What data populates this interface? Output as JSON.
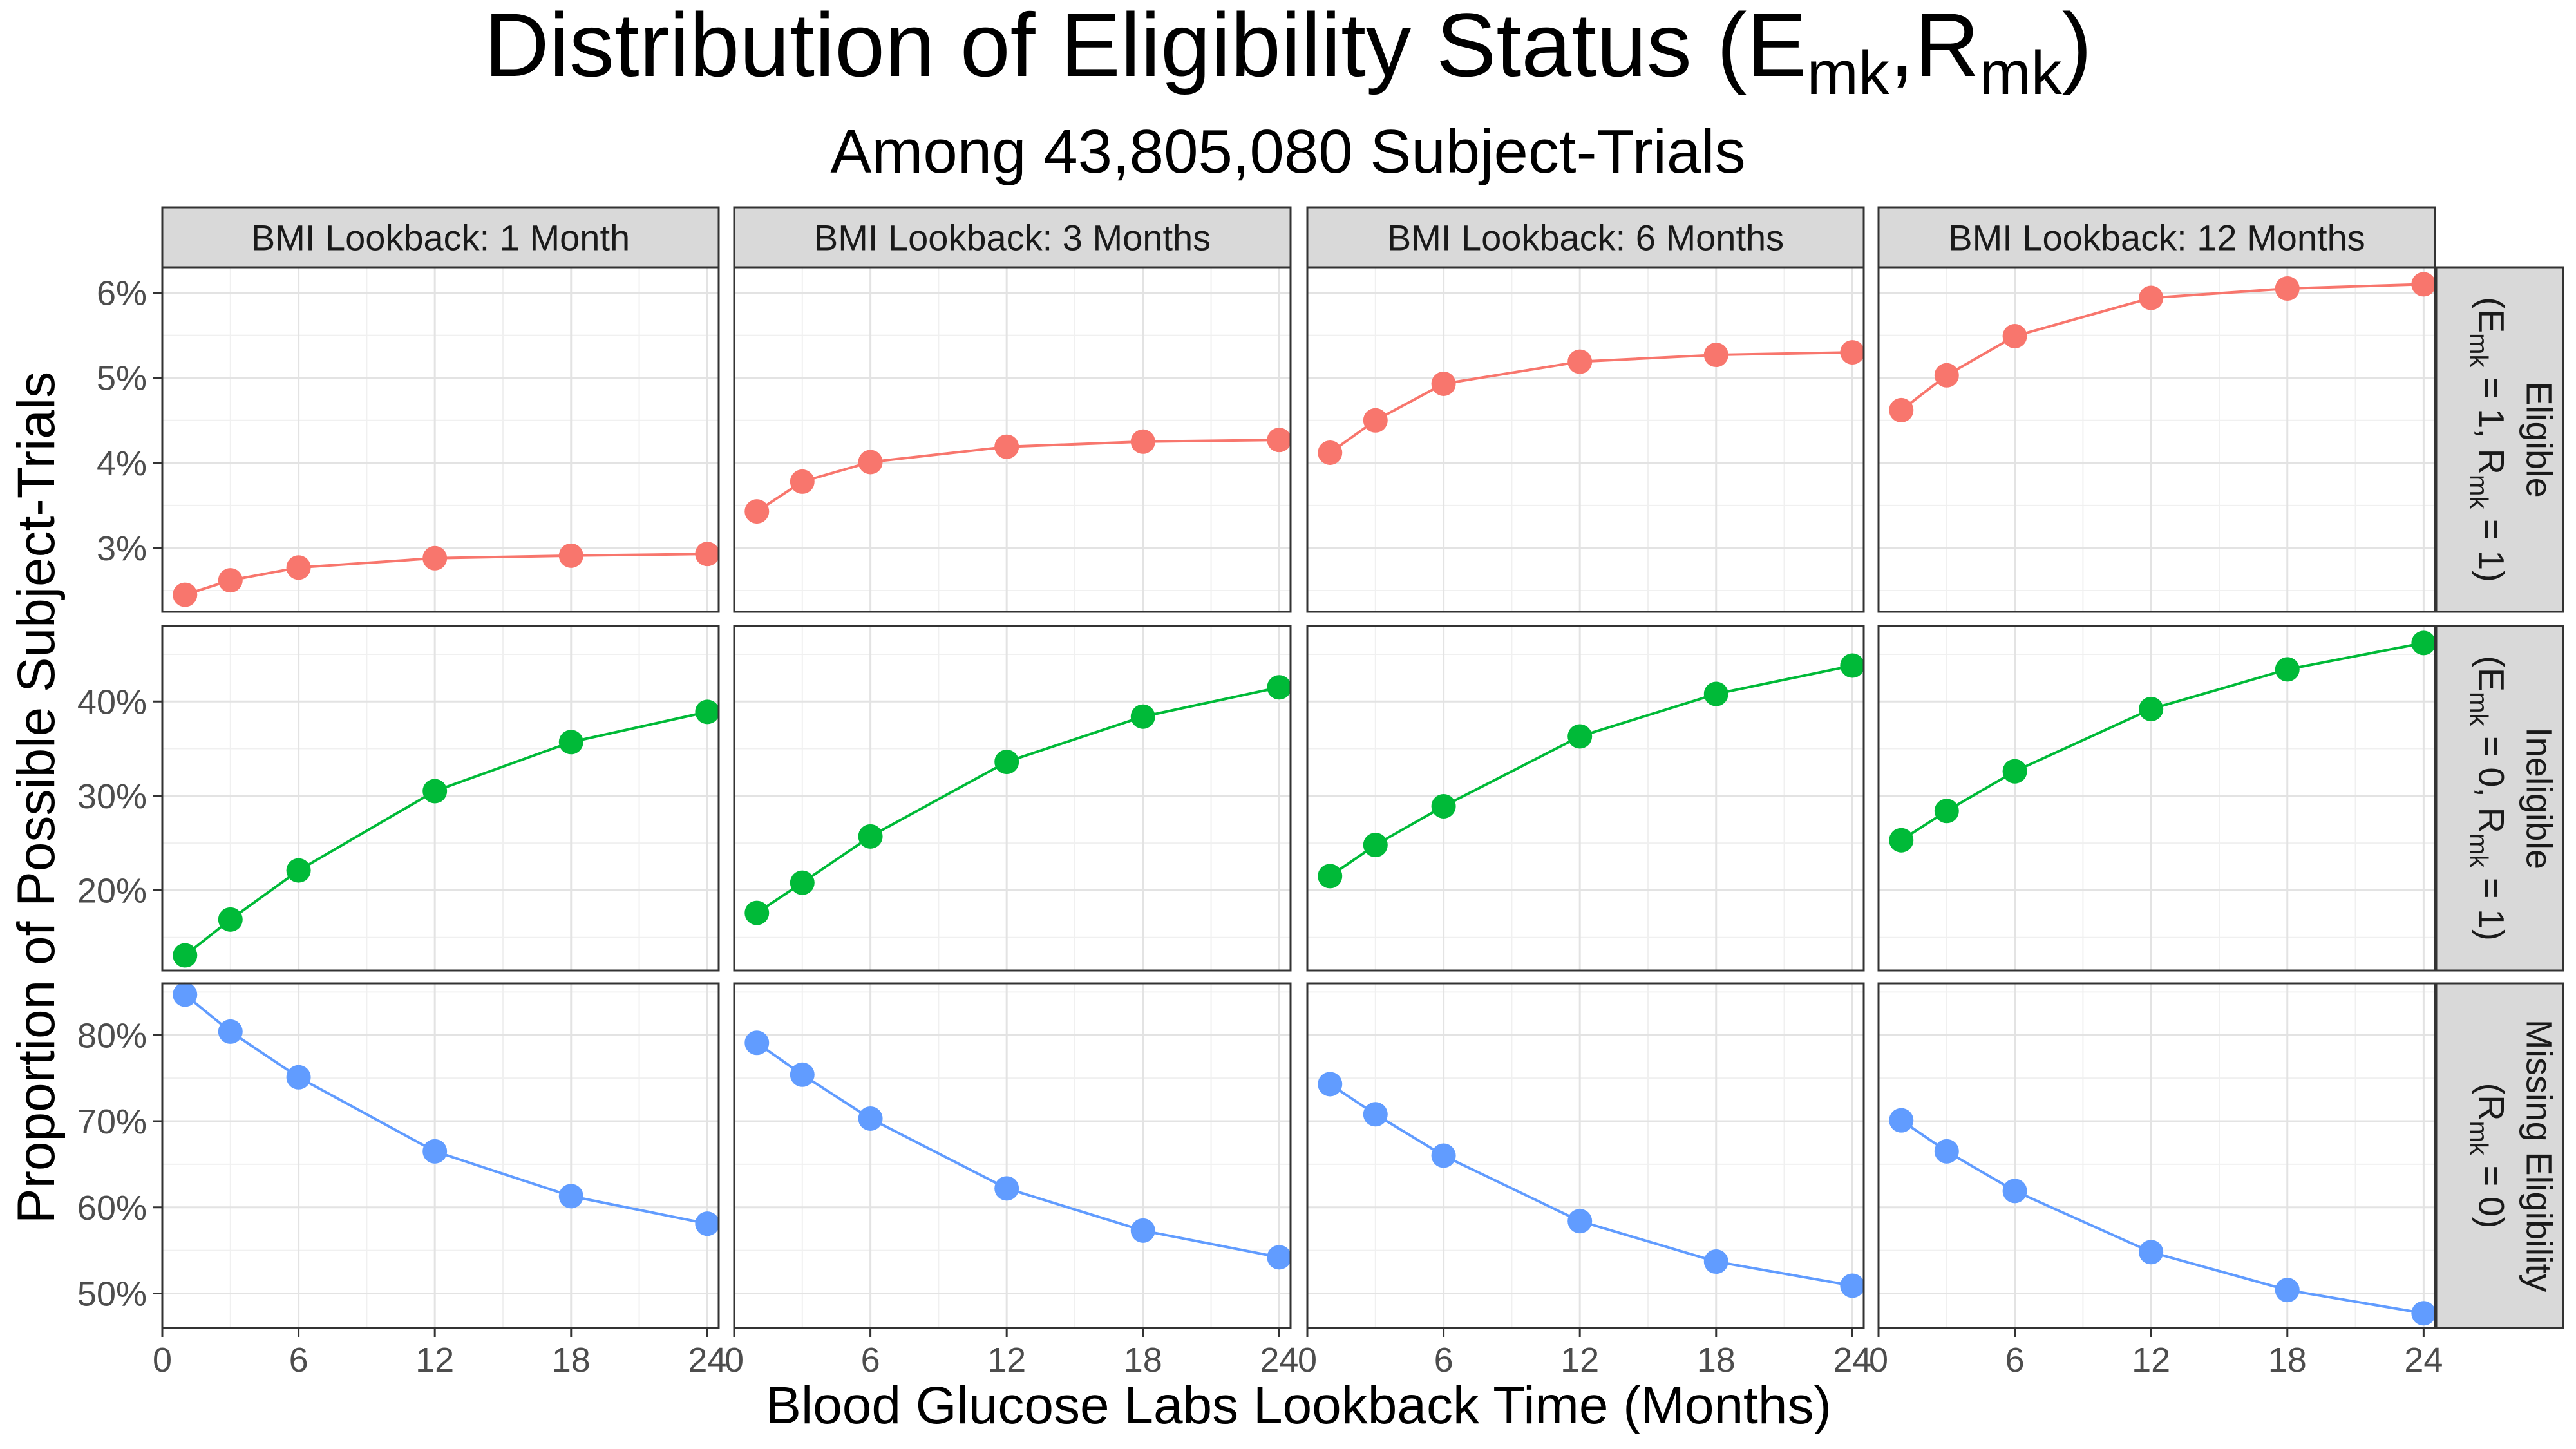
{
  "chart_data": {
    "type": "line",
    "title": {
      "main": "Distribution of Eligibility Status (E",
      "sub1": "mk",
      "sep": ",R",
      "sub2": "mk",
      "close": ")"
    },
    "subtitle": "Among 43,805,080 Subject-Trials",
    "xlabel": "Blood Glucose Labs Lookback Time (Months)",
    "ylabel": "Proportion of Possible Subject-Trials",
    "x": [
      1,
      3,
      6,
      12,
      18,
      24
    ],
    "x_ticks": [
      0,
      6,
      12,
      18,
      24
    ],
    "x_tick_labels": [
      "0",
      "6",
      "12",
      "18",
      "24"
    ],
    "xlim": [
      0,
      24.5
    ],
    "grid": true,
    "legend": "none",
    "columns": [
      "BMI Lookback: 1 Month",
      "BMI Lookback: 3 Months",
      "BMI Lookback: 6 Months",
      "BMI Lookback: 12 Months"
    ],
    "rows": [
      {
        "key": "eligible",
        "label_line1": "Eligible",
        "label_line2": [
          {
            "t": "(E",
            "sub": false
          },
          {
            "t": "mk",
            "sub": true
          },
          {
            "t": " = 1, R",
            "sub": false
          },
          {
            "t": "mk",
            "sub": true
          },
          {
            "t": " = 1)",
            "sub": false
          }
        ],
        "color": "#F8766D",
        "ylim": [
          2.25,
          6.3
        ],
        "y_ticks": [
          3,
          4,
          5,
          6
        ],
        "y_tick_labels": [
          "3%",
          "4%",
          "5%",
          "6%"
        ],
        "series": [
          {
            "values": [
              2.45,
              2.62,
              2.77,
              2.88,
              2.91,
              2.93
            ]
          },
          {
            "values": [
              3.43,
              3.78,
              4.01,
              4.19,
              4.25,
              4.27
            ]
          },
          {
            "values": [
              4.12,
              4.5,
              4.93,
              5.19,
              5.27,
              5.3
            ]
          },
          {
            "values": [
              4.62,
              5.03,
              5.49,
              5.94,
              6.05,
              6.1
            ]
          }
        ]
      },
      {
        "key": "ineligible",
        "label_line1": "Ineligible",
        "label_line2": [
          {
            "t": "(E",
            "sub": false
          },
          {
            "t": "mk",
            "sub": true
          },
          {
            "t": " = 0, R",
            "sub": false
          },
          {
            "t": "mk",
            "sub": true
          },
          {
            "t": " = 1)",
            "sub": false
          }
        ],
        "color": "#00BA38",
        "ylim": [
          11.5,
          48
        ],
        "y_ticks": [
          20,
          30,
          40
        ],
        "y_tick_labels": [
          "20%",
          "30%",
          "40%"
        ],
        "series": [
          {
            "values": [
              13.1,
              16.9,
              22.1,
              30.5,
              35.7,
              38.9
            ]
          },
          {
            "values": [
              17.6,
              20.8,
              25.7,
              33.6,
              38.4,
              41.5
            ]
          },
          {
            "values": [
              21.5,
              24.8,
              28.9,
              36.3,
              40.8,
              43.8
            ]
          },
          {
            "values": [
              25.3,
              28.4,
              32.6,
              39.2,
              43.4,
              46.2
            ]
          }
        ]
      },
      {
        "key": "missing",
        "label_line1": "Missing Eligibility",
        "label_line2": [
          {
            "t": "(R",
            "sub": false
          },
          {
            "t": "mk",
            "sub": true
          },
          {
            "t": " = 0)",
            "sub": false
          }
        ],
        "color": "#619CFF",
        "ylim": [
          46,
          86
        ],
        "y_ticks": [
          50,
          60,
          70,
          80
        ],
        "y_tick_labels": [
          "50%",
          "60%",
          "70%",
          "80%"
        ],
        "series": [
          {
            "values": [
              84.7,
              80.4,
              75.1,
              66.5,
              61.3,
              58.1
            ]
          },
          {
            "values": [
              79.1,
              75.4,
              70.3,
              62.2,
              57.3,
              54.2
            ]
          },
          {
            "values": [
              74.3,
              70.8,
              66.0,
              58.4,
              53.7,
              50.9
            ]
          },
          {
            "values": [
              70.1,
              66.5,
              61.9,
              54.8,
              50.4,
              47.7
            ]
          }
        ]
      }
    ]
  }
}
